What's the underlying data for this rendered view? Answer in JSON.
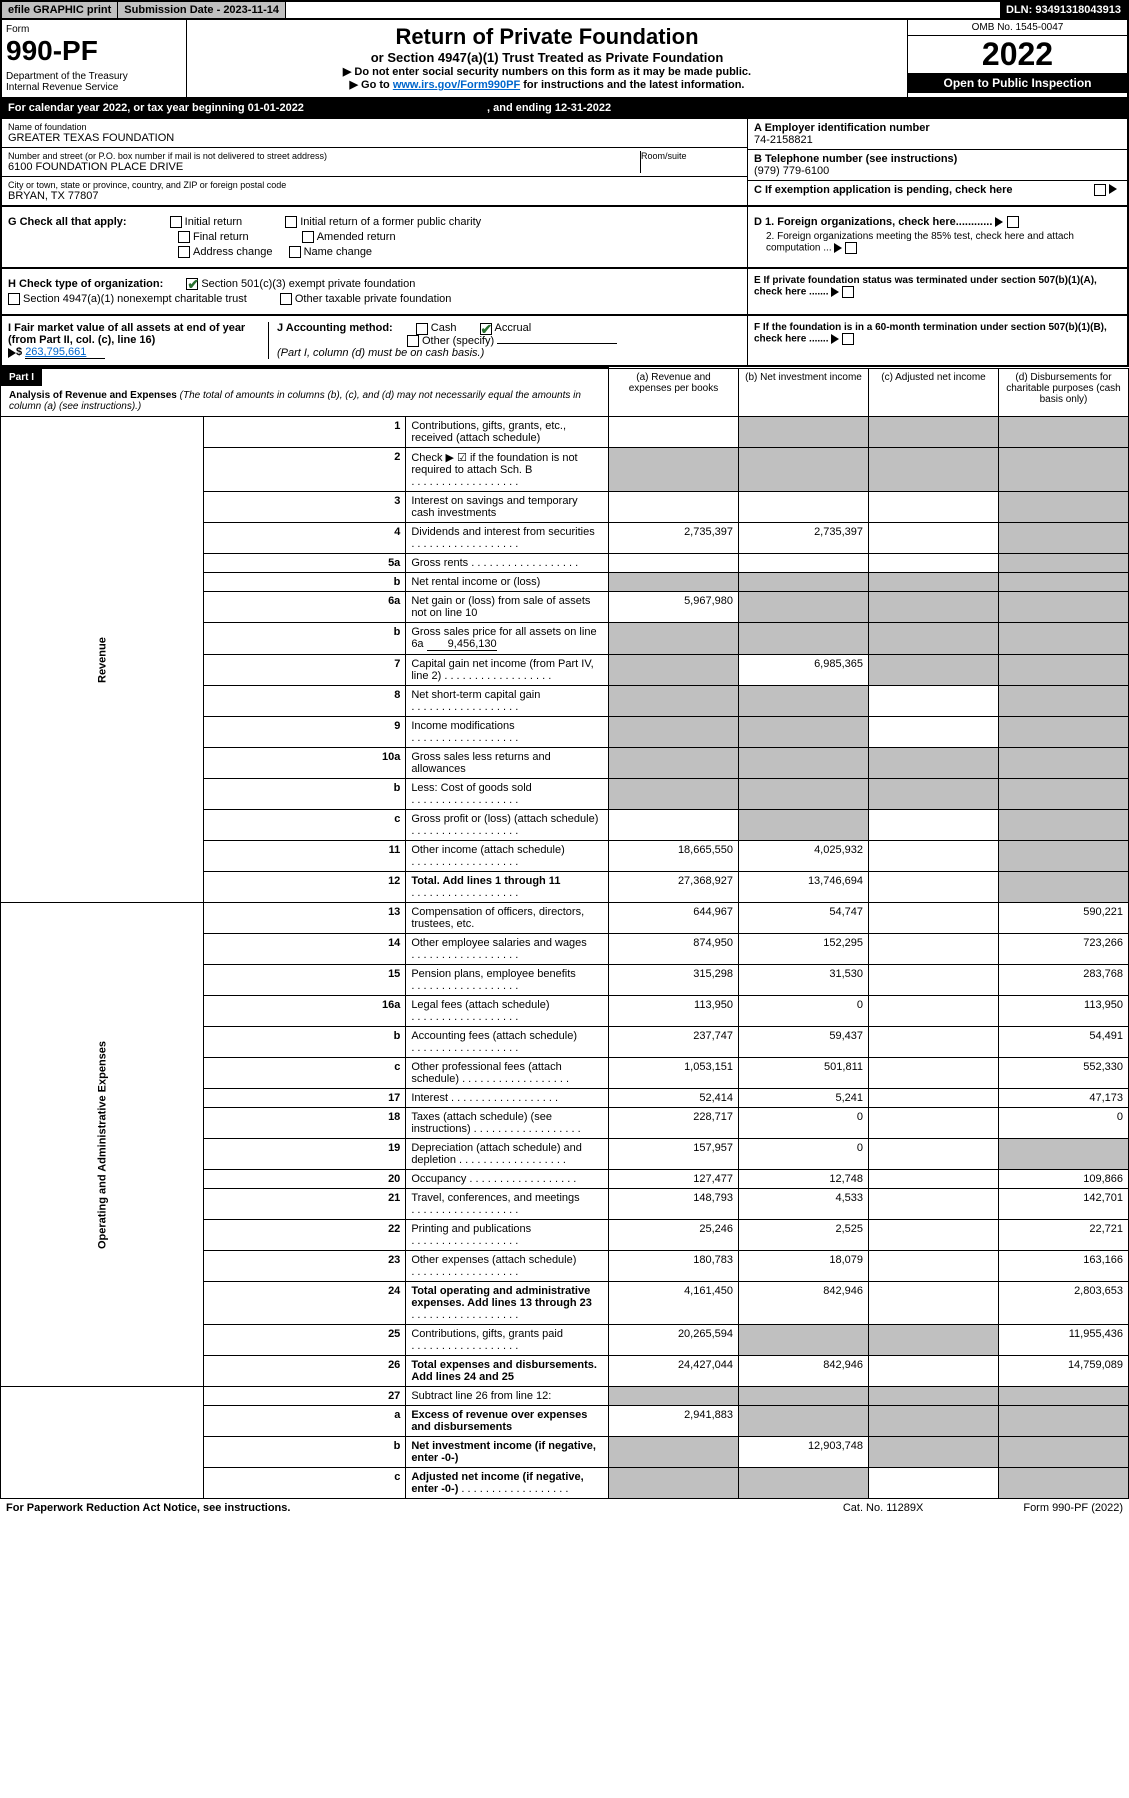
{
  "top_bar": {
    "efile": "efile GRAPHIC print",
    "submission": "Submission Date - 2023-11-14",
    "dln": "DLN: 93491318043913"
  },
  "header": {
    "form_label": "Form",
    "form_no": "990-PF",
    "dept": "Department of the Treasury\nInternal Revenue Service",
    "title": "Return of Private Foundation",
    "subtitle": "or Section 4947(a)(1) Trust Treated as Private Foundation",
    "note1": "▶ Do not enter social security numbers on this form as it may be made public.",
    "note2_pre": "▶ Go to ",
    "note2_link": "www.irs.gov/Form990PF",
    "note2_post": " for instructions and the latest information.",
    "omb": "OMB No. 1545-0047",
    "year": "2022",
    "open_pub": "Open to Public Inspection"
  },
  "cal_year": {
    "pre": "For calendar year 2022, or tax year beginning ",
    "begin": "01-01-2022",
    "mid": ", and ending ",
    "end": "12-31-2022"
  },
  "foundation": {
    "name_label": "Name of foundation",
    "name": "GREATER TEXAS FOUNDATION",
    "addr_label": "Number and street (or P.O. box number if mail is not delivered to street address)",
    "addr": "6100 FOUNDATION PLACE DRIVE",
    "room_label": "Room/suite",
    "city_label": "City or town, state or province, country, and ZIP or foreign postal code",
    "city": "BRYAN, TX  77807",
    "a_label": "A Employer identification number",
    "a_val": "74-2158821",
    "b_label": "B Telephone number (see instructions)",
    "b_val": "(979) 779-6100",
    "c_label": "C If exemption application is pending, check here"
  },
  "checks": {
    "g_label": "G Check all that apply:",
    "g_initial": "Initial return",
    "g_initial_former": "Initial return of a former public charity",
    "g_final": "Final return",
    "g_amended": "Amended return",
    "g_address": "Address change",
    "g_name": "Name change",
    "h_label": "H Check type of organization:",
    "h_501c3": "Section 501(c)(3) exempt private foundation",
    "h_4947": "Section 4947(a)(1) nonexempt charitable trust",
    "h_other": "Other taxable private foundation",
    "i_label": "I Fair market value of all assets at end of year (from Part II, col. (c), line 16)",
    "i_val": "263,795,661",
    "j_label": "J Accounting method:",
    "j_cash": "Cash",
    "j_accrual": "Accrual",
    "j_other": "Other (specify)",
    "j_note": "(Part I, column (d) must be on cash basis.)",
    "d1": "D 1. Foreign organizations, check here............",
    "d2": "2. Foreign organizations meeting the 85% test, check here and attach computation ...",
    "e": "E  If private foundation status was terminated under section 507(b)(1)(A), check here .......",
    "f": "F  If the foundation is in a 60-month termination under section 507(b)(1)(B), check here .......",
    "part": "Part I",
    "part_title": "Analysis of Revenue and Expenses",
    "part_note": "(The total of amounts in columns (b), (c), and (d) may not necessarily equal the amounts in column (a) (see instructions).)",
    "col_a": "(a)   Revenue and expenses per books",
    "col_b": "(b)   Net investment income",
    "col_c": "(c)   Adjusted net income",
    "col_d": "(d)   Disbursements for charitable purposes (cash basis only)"
  },
  "revenue_side": "Revenue",
  "expenses_side": "Operating and Administrative Expenses",
  "rows": [
    {
      "n": "1",
      "label": "Contributions, gifts, grants, etc., received (attach schedule)",
      "a": "",
      "b": "grey",
      "c": "grey",
      "d": "grey"
    },
    {
      "n": "2",
      "label": "Check ▶ ☑ if the foundation is not required to attach Sch. B",
      "dots": true,
      "a": "grey",
      "b": "grey",
      "c": "grey",
      "d": "grey"
    },
    {
      "n": "3",
      "label": "Interest on savings and temporary cash investments",
      "a": "",
      "b": "",
      "c": "",
      "d": "grey"
    },
    {
      "n": "4",
      "label": "Dividends and interest from securities",
      "dots": true,
      "a": "2,735,397",
      "b": "2,735,397",
      "c": "",
      "d": "grey"
    },
    {
      "n": "5a",
      "label": "Gross rents",
      "dots": true,
      "a": "",
      "b": "",
      "c": "",
      "d": "grey"
    },
    {
      "n": "b",
      "label": "Net rental income or (loss)",
      "a": "grey",
      "b": "grey",
      "c": "grey",
      "d": "grey"
    },
    {
      "n": "6a",
      "label": "Net gain or (loss) from sale of assets not on line 10",
      "a": "5,967,980",
      "b": "grey",
      "c": "grey",
      "d": "grey"
    },
    {
      "n": "b",
      "label": "Gross sales price for all assets on line 6a",
      "inline": "9,456,130",
      "a": "grey",
      "b": "grey",
      "c": "grey",
      "d": "grey"
    },
    {
      "n": "7",
      "label": "Capital gain net income (from Part IV, line 2)",
      "dots": true,
      "a": "grey",
      "b": "6,985,365",
      "c": "grey",
      "d": "grey"
    },
    {
      "n": "8",
      "label": "Net short-term capital gain",
      "dots": true,
      "a": "grey",
      "b": "grey",
      "c": "",
      "d": "grey"
    },
    {
      "n": "9",
      "label": "Income modifications",
      "dots": true,
      "a": "grey",
      "b": "grey",
      "c": "",
      "d": "grey"
    },
    {
      "n": "10a",
      "label": "Gross sales less returns and allowances",
      "a": "grey",
      "b": "grey",
      "c": "grey",
      "d": "grey"
    },
    {
      "n": "b",
      "label": "Less: Cost of goods sold",
      "dots": true,
      "a": "grey",
      "b": "grey",
      "c": "grey",
      "d": "grey"
    },
    {
      "n": "c",
      "label": "Gross profit or (loss) (attach schedule)",
      "dots": true,
      "a": "",
      "b": "grey",
      "c": "",
      "d": "grey"
    },
    {
      "n": "11",
      "label": "Other income (attach schedule)",
      "dots": true,
      "a": "18,665,550",
      "b": "4,025,932",
      "c": "",
      "d": "grey"
    },
    {
      "n": "12",
      "label": "Total. Add lines 1 through 11",
      "bold": true,
      "dots": true,
      "a": "27,368,927",
      "b": "13,746,694",
      "c": "",
      "d": "grey"
    }
  ],
  "exp_rows": [
    {
      "n": "13",
      "label": "Compensation of officers, directors, trustees, etc.",
      "a": "644,967",
      "b": "54,747",
      "c": "",
      "d": "590,221"
    },
    {
      "n": "14",
      "label": "Other employee salaries and wages",
      "dots": true,
      "a": "874,950",
      "b": "152,295",
      "c": "",
      "d": "723,266"
    },
    {
      "n": "15",
      "label": "Pension plans, employee benefits",
      "dots": true,
      "a": "315,298",
      "b": "31,530",
      "c": "",
      "d": "283,768"
    },
    {
      "n": "16a",
      "label": "Legal fees (attach schedule)",
      "dots": true,
      "a": "113,950",
      "b": "0",
      "c": "",
      "d": "113,950"
    },
    {
      "n": "b",
      "label": "Accounting fees (attach schedule)",
      "dots": true,
      "a": "237,747",
      "b": "59,437",
      "c": "",
      "d": "54,491"
    },
    {
      "n": "c",
      "label": "Other professional fees (attach schedule)",
      "dots": true,
      "a": "1,053,151",
      "b": "501,811",
      "c": "",
      "d": "552,330"
    },
    {
      "n": "17",
      "label": "Interest",
      "dots": true,
      "a": "52,414",
      "b": "5,241",
      "c": "",
      "d": "47,173"
    },
    {
      "n": "18",
      "label": "Taxes (attach schedule) (see instructions)",
      "dots": true,
      "a": "228,717",
      "b": "0",
      "c": "",
      "d": "0"
    },
    {
      "n": "19",
      "label": "Depreciation (attach schedule) and depletion",
      "dots": true,
      "a": "157,957",
      "b": "0",
      "c": "",
      "d": "grey"
    },
    {
      "n": "20",
      "label": "Occupancy",
      "dots": true,
      "a": "127,477",
      "b": "12,748",
      "c": "",
      "d": "109,866"
    },
    {
      "n": "21",
      "label": "Travel, conferences, and meetings",
      "dots": true,
      "a": "148,793",
      "b": "4,533",
      "c": "",
      "d": "142,701"
    },
    {
      "n": "22",
      "label": "Printing and publications",
      "dots": true,
      "a": "25,246",
      "b": "2,525",
      "c": "",
      "d": "22,721"
    },
    {
      "n": "23",
      "label": "Other expenses (attach schedule)",
      "dots": true,
      "a": "180,783",
      "b": "18,079",
      "c": "",
      "d": "163,166"
    },
    {
      "n": "24",
      "label": "Total operating and administrative expenses. Add lines 13 through 23",
      "bold": true,
      "dots": true,
      "a": "4,161,450",
      "b": "842,946",
      "c": "",
      "d": "2,803,653"
    },
    {
      "n": "25",
      "label": "Contributions, gifts, grants paid",
      "dots": true,
      "a": "20,265,594",
      "b": "grey",
      "c": "grey",
      "d": "11,955,436"
    },
    {
      "n": "26",
      "label": "Total expenses and disbursements. Add lines 24 and 25",
      "bold": true,
      "a": "24,427,044",
      "b": "842,946",
      "c": "",
      "d": "14,759,089"
    }
  ],
  "final_rows": [
    {
      "n": "27",
      "label": "Subtract line 26 from line 12:",
      "a": "grey",
      "b": "grey",
      "c": "grey",
      "d": "grey"
    },
    {
      "n": "a",
      "label": "Excess of revenue over expenses and disbursements",
      "bold": true,
      "a": "2,941,883",
      "b": "grey",
      "c": "grey",
      "d": "grey"
    },
    {
      "n": "b",
      "label": "Net investment income (if negative, enter -0-)",
      "bold": true,
      "a": "grey",
      "b": "12,903,748",
      "c": "grey",
      "d": "grey"
    },
    {
      "n": "c",
      "label": "Adjusted net income (if negative, enter -0-)",
      "bold": true,
      "dots": true,
      "a": "grey",
      "b": "grey",
      "c": "",
      "d": "grey"
    }
  ],
  "footer": {
    "left": "For Paperwork Reduction Act Notice, see instructions.",
    "mid": "Cat. No. 11289X",
    "right": "Form 990-PF (2022)"
  }
}
